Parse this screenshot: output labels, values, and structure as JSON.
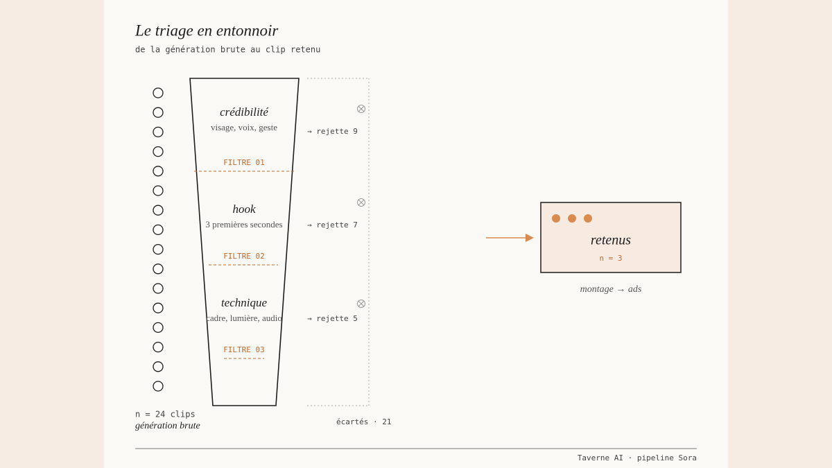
{
  "header": {
    "title": "Le triage en entonnoir",
    "subtitle": "de la génération brute au clip retenu"
  },
  "input": {
    "count": "n = 24 clips",
    "label": "génération brute"
  },
  "stages": [
    {
      "title": "crédibilité",
      "subtitle": "visage, voix, geste",
      "filter": "FILTRE 01",
      "rejected": "→ rejette 9"
    },
    {
      "title": "hook",
      "subtitle": "3 premières secondes",
      "filter": "FILTRE 02",
      "rejected": "→ rejette 7"
    },
    {
      "title": "technique",
      "subtitle": "cadre, lumière, audio",
      "filter": "FILTRE 03",
      "rejected": "→ rejette 5"
    }
  ],
  "discarded": "écartés · 21",
  "output": {
    "title": "retenus",
    "count": "n = 3",
    "next": "montage → ads"
  },
  "footer": "Taverne AI · pipeline Sora"
}
